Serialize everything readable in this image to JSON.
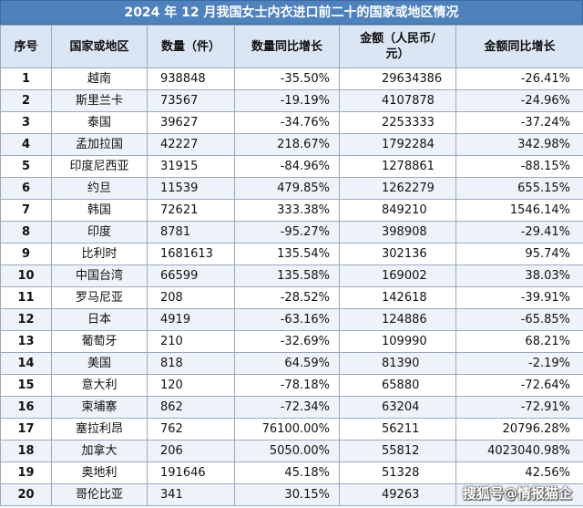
{
  "title": "2024 年 12 月我国女士内衣进口前二十的国家或地区情况",
  "headers": {
    "index": "序号",
    "region": "国家或地区",
    "quantity": "数量（件）",
    "quantity_yoy": "数量同比增长",
    "amount": "金额（人民币/元）",
    "amount_yoy": "金额同比增长"
  },
  "rows": [
    {
      "index": "1",
      "region": "越南",
      "quantity": "938848",
      "quantity_yoy": "-35.50%",
      "amount": "29634386",
      "amount_yoy": "-26.41%"
    },
    {
      "index": "2",
      "region": "斯里兰卡",
      "quantity": "73567",
      "quantity_yoy": "-19.19%",
      "amount": "4107878",
      "amount_yoy": "-24.96%"
    },
    {
      "index": "3",
      "region": "泰国",
      "quantity": "39627",
      "quantity_yoy": "-34.76%",
      "amount": "2253333",
      "amount_yoy": "-37.24%"
    },
    {
      "index": "4",
      "region": "孟加拉国",
      "quantity": "42227",
      "quantity_yoy": "218.67%",
      "amount": "1792284",
      "amount_yoy": "342.98%"
    },
    {
      "index": "5",
      "region": "印度尼西亚",
      "quantity": "31915",
      "quantity_yoy": "-84.96%",
      "amount": "1278861",
      "amount_yoy": "-88.15%"
    },
    {
      "index": "6",
      "region": "约旦",
      "quantity": "11539",
      "quantity_yoy": "479.85%",
      "amount": "1262279",
      "amount_yoy": "655.15%"
    },
    {
      "index": "7",
      "region": "韩国",
      "quantity": "72621",
      "quantity_yoy": "333.38%",
      "amount": "849210",
      "amount_yoy": "1546.14%"
    },
    {
      "index": "8",
      "region": "印度",
      "quantity": "8781",
      "quantity_yoy": "-95.27%",
      "amount": "398908",
      "amount_yoy": "-29.41%"
    },
    {
      "index": "9",
      "region": "比利时",
      "quantity": "1681613",
      "quantity_yoy": "135.54%",
      "amount": "302136",
      "amount_yoy": "95.74%"
    },
    {
      "index": "10",
      "region": "中国台湾",
      "quantity": "66599",
      "quantity_yoy": "135.58%",
      "amount": "169002",
      "amount_yoy": "38.03%"
    },
    {
      "index": "11",
      "region": "罗马尼亚",
      "quantity": "208",
      "quantity_yoy": "-28.52%",
      "amount": "142618",
      "amount_yoy": "-39.91%"
    },
    {
      "index": "12",
      "region": "日本",
      "quantity": "4919",
      "quantity_yoy": "-63.16%",
      "amount": "124886",
      "amount_yoy": "-65.85%"
    },
    {
      "index": "13",
      "region": "葡萄牙",
      "quantity": "210",
      "quantity_yoy": "-32.69%",
      "amount": "109990",
      "amount_yoy": "68.21%"
    },
    {
      "index": "14",
      "region": "美国",
      "quantity": "818",
      "quantity_yoy": "64.59%",
      "amount": "81390",
      "amount_yoy": "-2.19%"
    },
    {
      "index": "15",
      "region": "意大利",
      "quantity": "120",
      "quantity_yoy": "-78.18%",
      "amount": "65880",
      "amount_yoy": "-72.64%"
    },
    {
      "index": "16",
      "region": "柬埔寨",
      "quantity": "862",
      "quantity_yoy": "-72.34%",
      "amount": "63204",
      "amount_yoy": "-72.91%"
    },
    {
      "index": "17",
      "region": "塞拉利昂",
      "quantity": "762",
      "quantity_yoy": "76100.00%",
      "amount": "56211",
      "amount_yoy": "20796.28%"
    },
    {
      "index": "18",
      "region": "加拿大",
      "quantity": "206",
      "quantity_yoy": "5050.00%",
      "amount": "55812",
      "amount_yoy": "4023040.98%"
    },
    {
      "index": "19",
      "region": "奥地利",
      "quantity": "191646",
      "quantity_yoy": "45.18%",
      "amount": "51328",
      "amount_yoy": "42.56%"
    },
    {
      "index": "20",
      "region": "哥伦比亚",
      "quantity": "341",
      "quantity_yoy": "30.15%",
      "amount": "49263",
      "amount_yoy": ""
    }
  ],
  "watermark": "搜狐号@情报猫企"
}
